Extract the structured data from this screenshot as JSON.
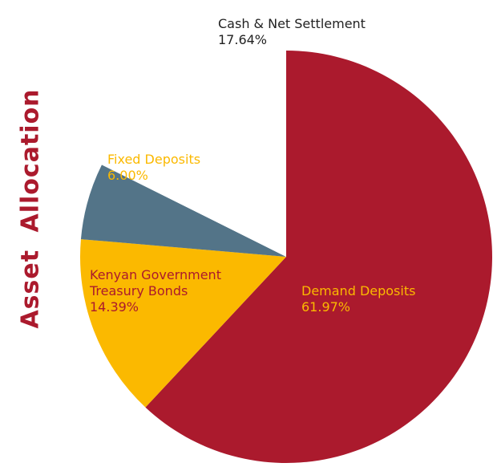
{
  "chart_data": {
    "type": "pie",
    "title": "Asset Allocation",
    "categories": [
      "Demand Deposits",
      "Kenyan Government Treasury Bonds",
      "Fixed Deposits",
      "Cash & Net Settlement"
    ],
    "values": [
      61.97,
      14.39,
      6.0,
      17.64
    ],
    "value_labels": [
      "61.97%",
      "14.39%",
      "6.00%",
      "17.64%"
    ],
    "colors": [
      "#ab1a2d",
      "#fbb900",
      "#537488",
      "#ffffff"
    ]
  }
}
